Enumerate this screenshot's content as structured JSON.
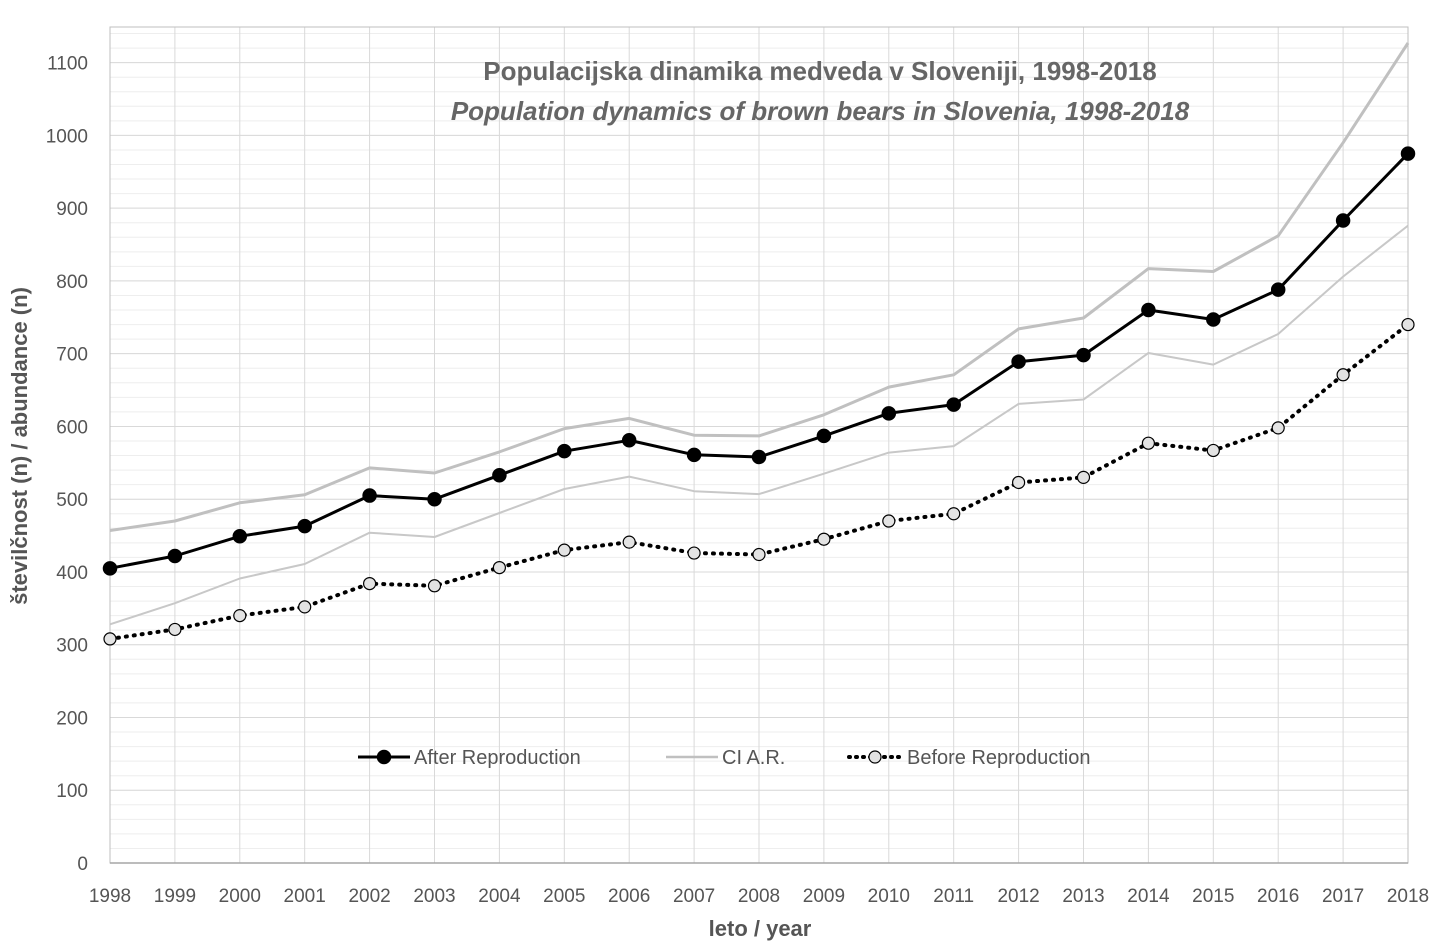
{
  "chart_data": {
    "type": "line",
    "title": "Populacijska dinamika medveda v Sloveniji, 1998-2018",
    "subtitle": "Population dynamics of brown bears in Slovenia, 1998-2018",
    "xlabel": "leto / year",
    "ylabel": "številčnost (n) / abundance (n)",
    "x": [
      "1998",
      "1999",
      "2000",
      "2001",
      "2002",
      "2003",
      "2004",
      "2005",
      "2006",
      "2007",
      "2008",
      "2009",
      "2010",
      "2011",
      "2012",
      "2013",
      "2014",
      "2015",
      "2016",
      "2017",
      "2018"
    ],
    "ylim": [
      0,
      1150
    ],
    "yticks": [
      0,
      100,
      200,
      300,
      400,
      500,
      600,
      700,
      800,
      900,
      1000,
      1100
    ],
    "minor_grid_step": 20,
    "grid": true,
    "legend_position": "bottom-center",
    "series": [
      {
        "name": "After Reproduction",
        "style": "solid-markers",
        "color": "#000000",
        "values": [
          405,
          422,
          449,
          463,
          505,
          500,
          533,
          566,
          581,
          561,
          558,
          587,
          618,
          630,
          689,
          698,
          760,
          747,
          788,
          883,
          975
        ]
      },
      {
        "name": "CI A.R.",
        "style": "thin-line",
        "color": "#c0c0c0",
        "values": [
          457,
          470,
          495,
          506,
          543,
          536,
          565,
          597,
          611,
          588,
          587,
          616,
          654,
          671,
          734,
          749,
          817,
          813,
          862,
          990,
          1127
        ]
      },
      {
        "name": "",
        "style": "thin-line",
        "color": "#c8c8c8",
        "values": [
          328,
          357,
          391,
          411,
          454,
          448,
          481,
          514,
          531,
          511,
          507,
          535,
          564,
          573,
          631,
          637,
          701,
          685,
          727,
          806,
          876
        ]
      },
      {
        "name": "Before Reproduction",
        "style": "dotted-hollow-markers",
        "color": "#000000",
        "values": [
          308,
          321,
          340,
          352,
          384,
          381,
          406,
          430,
          441,
          426,
          424,
          445,
          470,
          480,
          523,
          530,
          577,
          567,
          598,
          671,
          740
        ]
      }
    ]
  },
  "colors": {
    "major_grid": "#d9d9d9",
    "minor_grid": "#eeeeee",
    "axis": "#bfbfbf",
    "text": "#555555"
  }
}
